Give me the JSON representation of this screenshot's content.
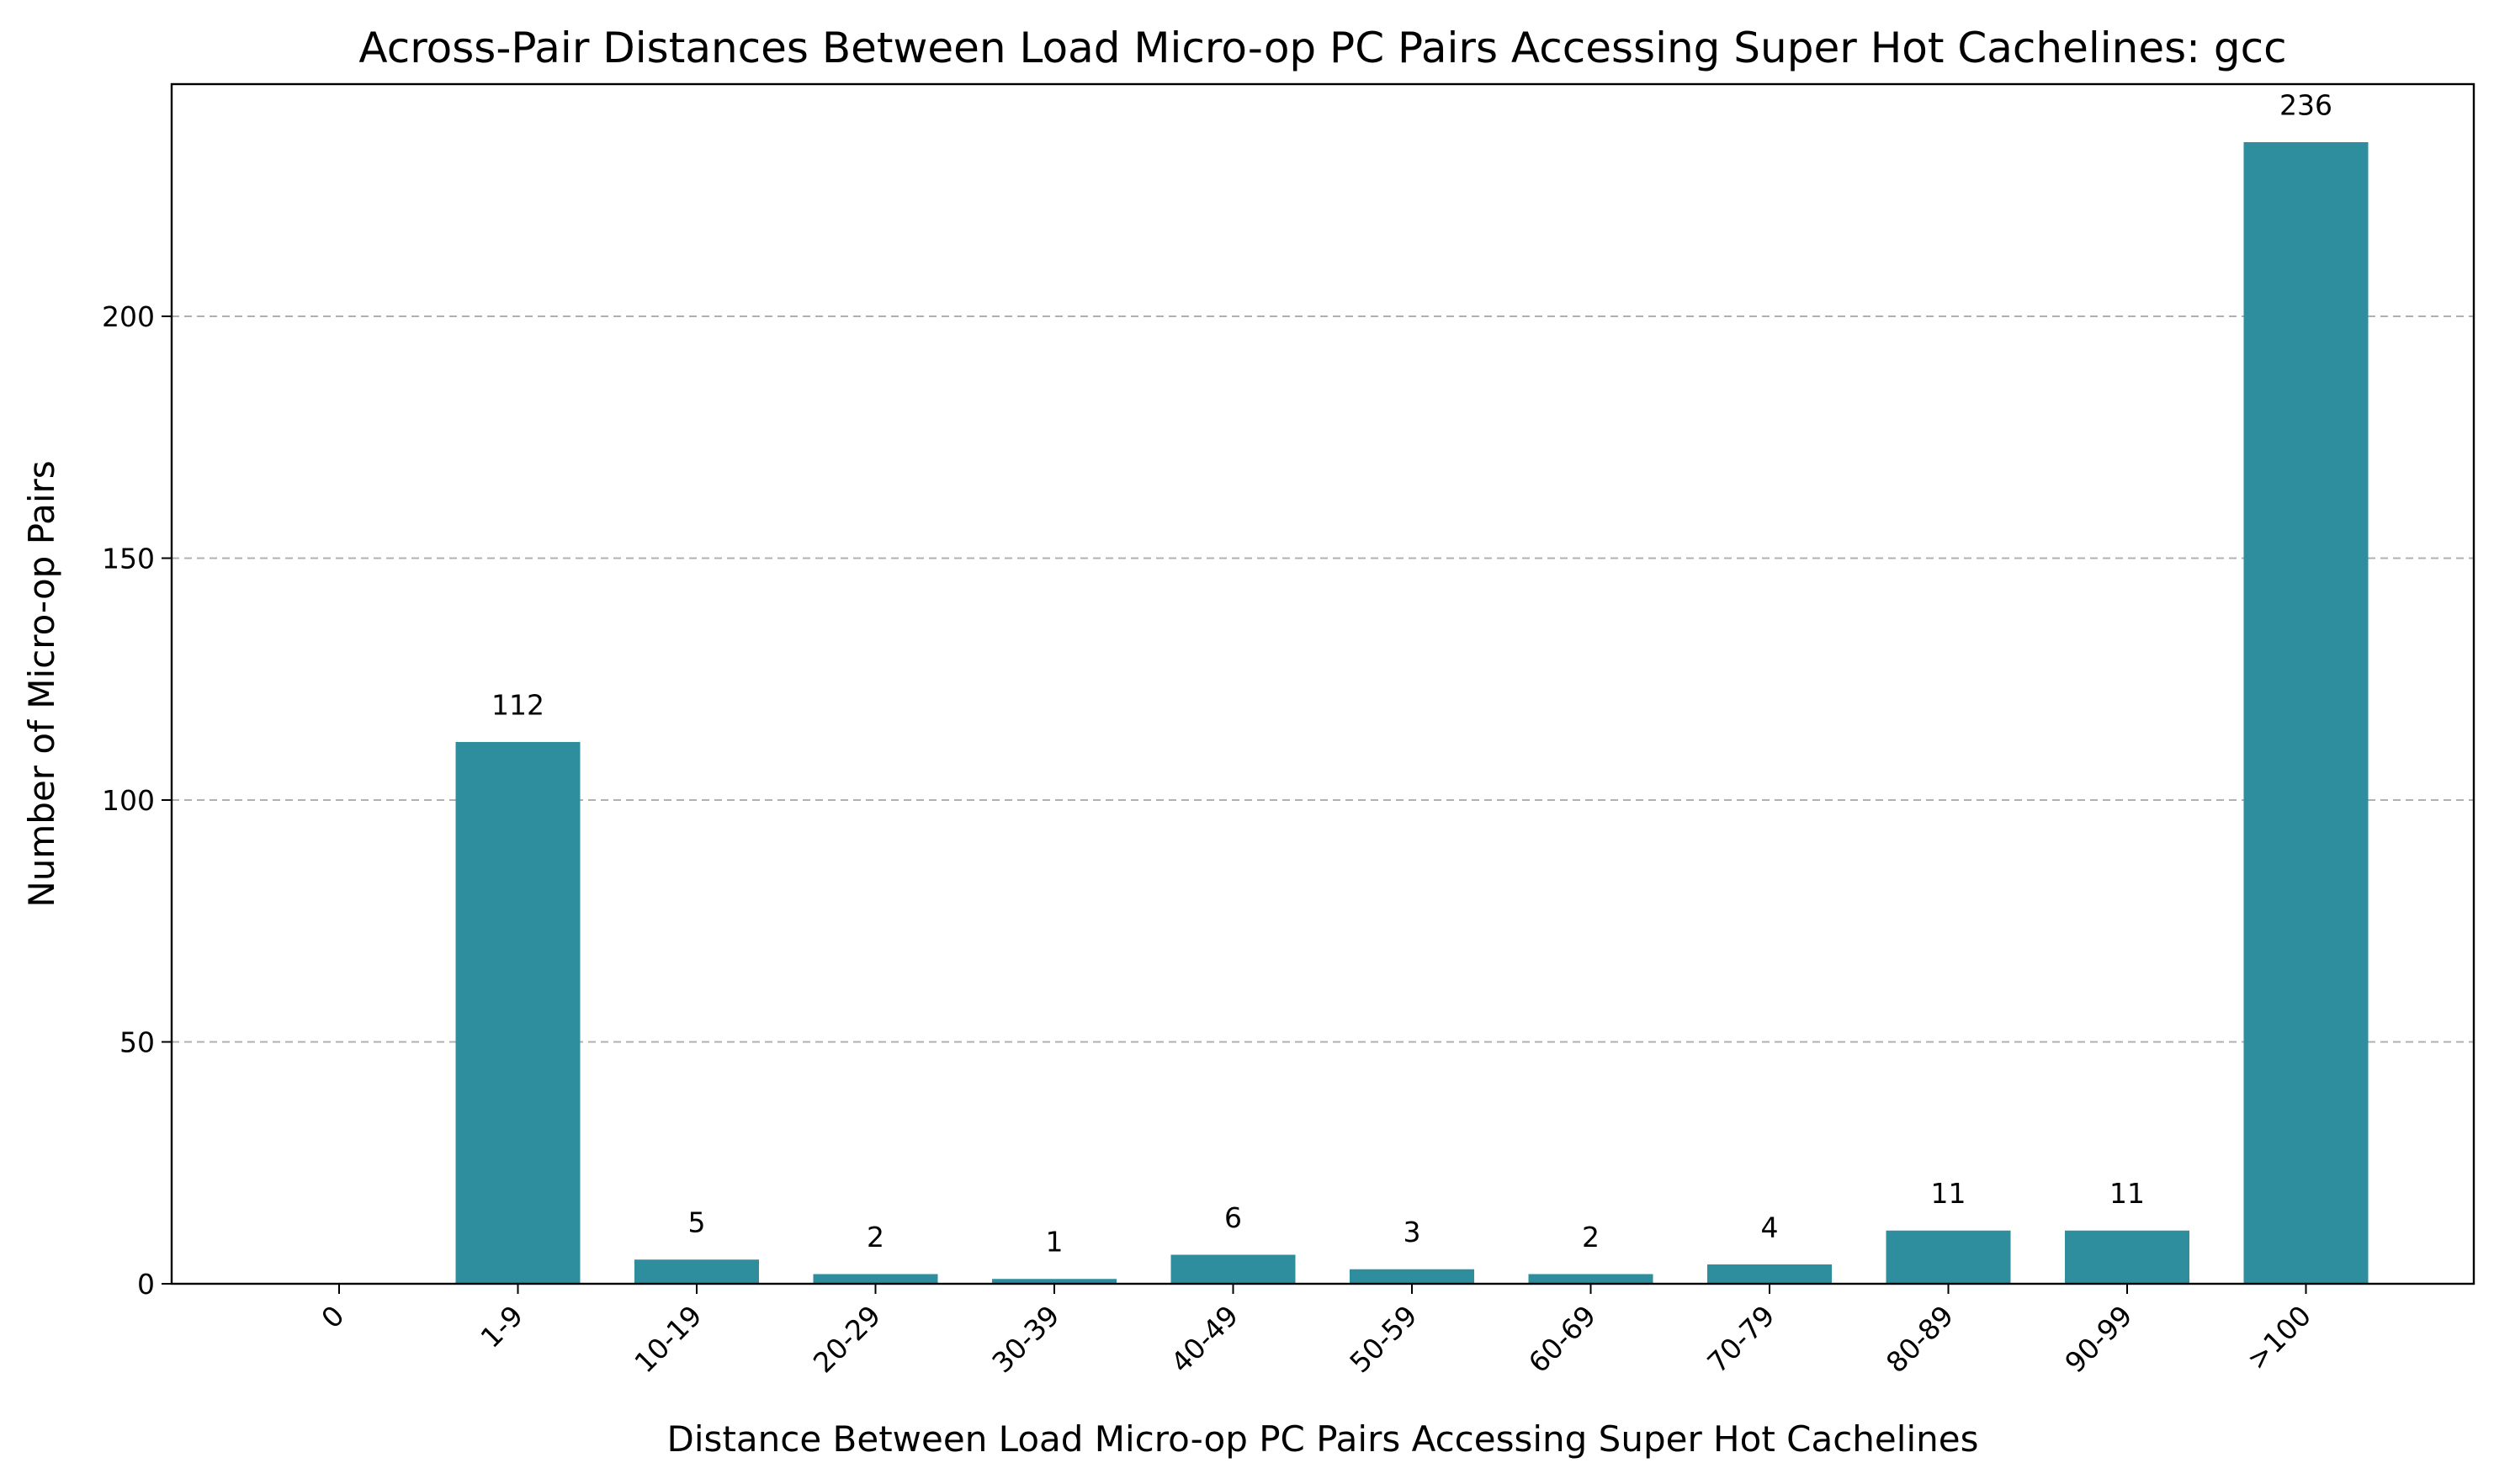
{
  "chart_data": {
    "type": "bar",
    "title": "Across-Pair Distances Between Load Micro-op PC Pairs Accessing Super Hot Cachelines: gcc",
    "xlabel": "Distance Between Load Micro-op PC Pairs Accessing Super Hot Cachelines",
    "ylabel": "Number of Micro-op Pairs",
    "categories": [
      "0",
      "1-9",
      "10-19",
      "20-29",
      "30-39",
      "40-49",
      "50-59",
      "60-69",
      "70-79",
      "80-89",
      "90-99",
      ">100"
    ],
    "values": [
      0,
      112,
      5,
      2,
      1,
      6,
      3,
      2,
      4,
      11,
      11,
      236
    ],
    "data_labels": [
      "",
      "112",
      "5",
      "2",
      "1",
      "6",
      "3",
      "2",
      "4",
      "11",
      "11",
      "236"
    ],
    "yticks": [
      0,
      50,
      100,
      150,
      200
    ],
    "ylim": [
      0,
      248
    ],
    "grid": "y-dashed",
    "bar_color": "#2e8e9e",
    "legend": "none"
  }
}
